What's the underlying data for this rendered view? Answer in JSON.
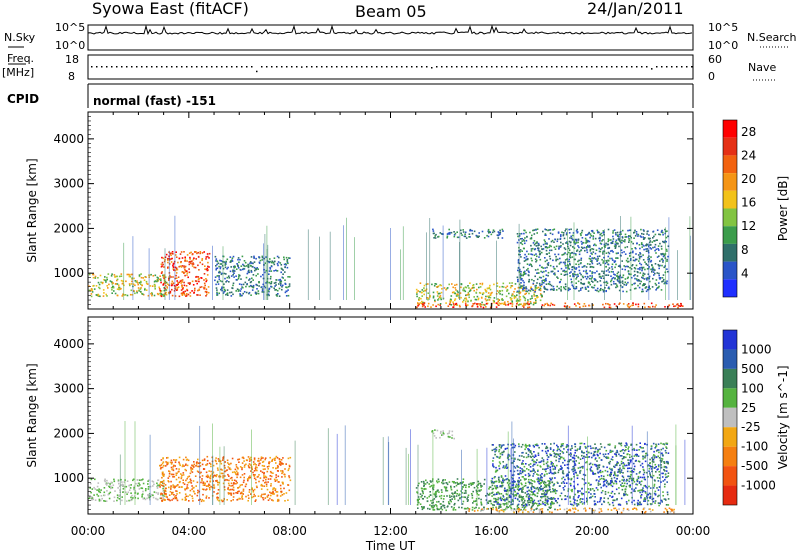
{
  "header": {
    "title": "Syowa East (fitACF)",
    "beam": "Beam 05",
    "date": "24/Jan/2011"
  },
  "strip": {
    "nsky_label": "N.Sky",
    "nsky_top": "10^5",
    "nsky_bot": "10^0",
    "nsearch_label": "N.Search",
    "nsearch_top": "10^5",
    "nsearch_bot": "10^0",
    "freq_label_1": "Freq.",
    "freq_label_2": "[MHz]",
    "freq_top": "18",
    "freq_bot": "8",
    "nave_label": "Nave",
    "nave_top": "60",
    "nave_bot": "0",
    "cpid_label": "CPID",
    "cpid_text": "normal (fast) -151"
  },
  "colors": {
    "power_scale": [
      "#1f2fff",
      "#2a55c8",
      "#2f6f6a",
      "#3b9c4b",
      "#82c442",
      "#f2c21a",
      "#f59515",
      "#f2620f",
      "#e53015",
      "#ff0000"
    ],
    "velocity_scale": [
      "#2234d6",
      "#2a5cb0",
      "#3a7f57",
      "#55b33f",
      "#bfbfbf",
      "#f2a713",
      "#f57f10",
      "#f25311",
      "#e62b11"
    ]
  },
  "chart_data": [
    {
      "type": "heatmap",
      "parameter": "Power",
      "ylabel": "Slant Range [km]",
      "xlabel": "Time UT",
      "x_ticks": [
        "00:00",
        "04:00",
        "08:00",
        "12:00",
        "16:00",
        "20:00",
        "00:00"
      ],
      "y_ticks": [
        1000,
        2000,
        3000,
        4000
      ],
      "ylim": [
        200,
        4600
      ],
      "xlim_hours": [
        0,
        24
      ],
      "colorbar": {
        "label": "Power [dB]",
        "ticks": [
          "4",
          "8",
          "12",
          "16",
          "20",
          "24",
          "28"
        ],
        "range": [
          0,
          30
        ]
      },
      "features": [
        {
          "start_hour": 0.0,
          "end_hour": 3.2,
          "range_low": 500,
          "range_high": 1000,
          "level": "mid"
        },
        {
          "start_hour": 2.8,
          "end_hour": 4.8,
          "range_low": 500,
          "range_high": 1500,
          "level": "high"
        },
        {
          "start_hour": 5.0,
          "end_hour": 8.0,
          "range_low": 500,
          "range_high": 1400,
          "level": "low"
        },
        {
          "start_hour": 13.6,
          "end_hour": 16.5,
          "range_low": 1800,
          "range_high": 2000,
          "level": "low"
        },
        {
          "start_hour": 13.0,
          "end_hour": 18.0,
          "range_low": 300,
          "range_high": 800,
          "level": "mid"
        },
        {
          "start_hour": 13.0,
          "end_hour": 23.6,
          "range_low": 250,
          "range_high": 350,
          "level": "high"
        },
        {
          "start_hour": 17.0,
          "end_hour": 23.0,
          "range_low": 600,
          "range_high": 2000,
          "level": "low"
        }
      ]
    },
    {
      "type": "heatmap",
      "parameter": "Velocity",
      "ylabel": "Slant Range [km]",
      "xlabel": "Time UT",
      "x_ticks": [
        "00:00",
        "04:00",
        "08:00",
        "12:00",
        "16:00",
        "20:00",
        "00:00"
      ],
      "y_ticks": [
        1000,
        2000,
        3000,
        4000
      ],
      "ylim": [
        200,
        4600
      ],
      "xlim_hours": [
        0,
        24
      ],
      "colorbar": {
        "label": "Velocity [m s^-1]",
        "ticks": [
          "1000",
          "500",
          "100",
          "25",
          "-25",
          "-100",
          "-500",
          "-1000"
        ]
      },
      "features": [
        {
          "start_hour": 0.0,
          "end_hour": 3.0,
          "range_low": 500,
          "range_high": 1000,
          "level": "positive-low"
        },
        {
          "start_hour": 2.8,
          "end_hour": 8.0,
          "range_low": 500,
          "range_high": 1500,
          "level": "negative-mid"
        },
        {
          "start_hour": 13.6,
          "end_hour": 14.5,
          "range_low": 1900,
          "range_high": 2100,
          "level": "positive-low"
        },
        {
          "start_hour": 13.0,
          "end_hour": 18.5,
          "range_low": 300,
          "range_high": 1000,
          "level": "positive-mid"
        },
        {
          "start_hour": 16.0,
          "end_hour": 23.0,
          "range_low": 400,
          "range_high": 1800,
          "level": "positive-high"
        },
        {
          "start_hour": 15.0,
          "end_hour": 23.5,
          "range_low": 250,
          "range_high": 350,
          "level": "negative-low"
        }
      ]
    }
  ]
}
